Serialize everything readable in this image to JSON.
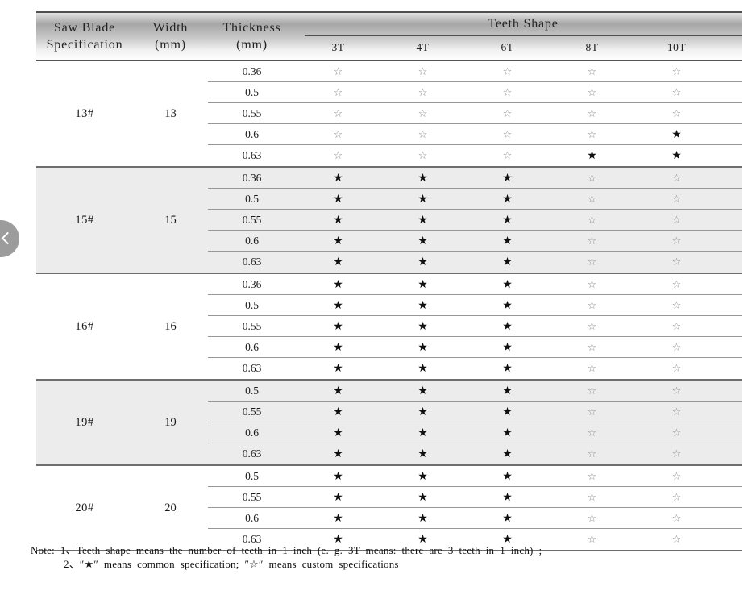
{
  "carousel": {
    "prev_icon": "chevron-left"
  },
  "table": {
    "header": {
      "spec_line1": "Saw Blade",
      "spec_line2": "Specification",
      "width_line1": "Width",
      "width_line2": "(mm)",
      "thickness_line1": "Thickness",
      "thickness_line2": "(mm)",
      "teeth_shape": "Teeth Shape",
      "teeth_cols": [
        "3T",
        "4T",
        "6T",
        "8T",
        "10T"
      ]
    },
    "legend": {
      "common": "★",
      "custom": "☆"
    },
    "groups": [
      {
        "spec": "13#",
        "width": "13",
        "shaded": false,
        "rows": [
          {
            "thickness": "0.36",
            "marks": [
              "custom",
              "custom",
              "custom",
              "custom",
              "custom"
            ]
          },
          {
            "thickness": "0.5",
            "marks": [
              "custom",
              "custom",
              "custom",
              "custom",
              "custom"
            ]
          },
          {
            "thickness": "0.55",
            "marks": [
              "custom",
              "custom",
              "custom",
              "custom",
              "custom"
            ]
          },
          {
            "thickness": "0.6",
            "marks": [
              "custom",
              "custom",
              "custom",
              "custom",
              "common"
            ]
          },
          {
            "thickness": "0.63",
            "marks": [
              "custom",
              "custom",
              "custom",
              "common",
              "common"
            ]
          }
        ]
      },
      {
        "spec": "15#",
        "width": "15",
        "shaded": true,
        "rows": [
          {
            "thickness": "0.36",
            "marks": [
              "common",
              "common",
              "common",
              "custom",
              "custom"
            ]
          },
          {
            "thickness": "0.5",
            "marks": [
              "common",
              "common",
              "common",
              "custom",
              "custom"
            ]
          },
          {
            "thickness": "0.55",
            "marks": [
              "common",
              "common",
              "common",
              "custom",
              "custom"
            ]
          },
          {
            "thickness": "0.6",
            "marks": [
              "common",
              "common",
              "common",
              "custom",
              "custom"
            ]
          },
          {
            "thickness": "0.63",
            "marks": [
              "common",
              "common",
              "common",
              "custom",
              "custom"
            ]
          }
        ]
      },
      {
        "spec": "16#",
        "width": "16",
        "shaded": false,
        "rows": [
          {
            "thickness": "0.36",
            "marks": [
              "common",
              "common",
              "common",
              "custom",
              "custom"
            ]
          },
          {
            "thickness": "0.5",
            "marks": [
              "common",
              "common",
              "common",
              "custom",
              "custom"
            ]
          },
          {
            "thickness": "0.55",
            "marks": [
              "common",
              "common",
              "common",
              "custom",
              "custom"
            ]
          },
          {
            "thickness": "0.6",
            "marks": [
              "common",
              "common",
              "common",
              "custom",
              "custom"
            ]
          },
          {
            "thickness": "0.63",
            "marks": [
              "common",
              "common",
              "common",
              "custom",
              "custom"
            ]
          }
        ]
      },
      {
        "spec": "19#",
        "width": "19",
        "shaded": true,
        "rows": [
          {
            "thickness": "0.5",
            "marks": [
              "common",
              "common",
              "common",
              "custom",
              "custom"
            ]
          },
          {
            "thickness": "0.55",
            "marks": [
              "common",
              "common",
              "common",
              "custom",
              "custom"
            ]
          },
          {
            "thickness": "0.6",
            "marks": [
              "common",
              "common",
              "common",
              "custom",
              "custom"
            ]
          },
          {
            "thickness": "0.63",
            "marks": [
              "common",
              "common",
              "common",
              "custom",
              "custom"
            ]
          }
        ]
      },
      {
        "spec": "20#",
        "width": "20",
        "shaded": false,
        "rows": [
          {
            "thickness": "0.5",
            "marks": [
              "common",
              "common",
              "common",
              "custom",
              "custom"
            ]
          },
          {
            "thickness": "0.55",
            "marks": [
              "common",
              "common",
              "common",
              "custom",
              "custom"
            ]
          },
          {
            "thickness": "0.6",
            "marks": [
              "common",
              "common",
              "common",
              "custom",
              "custom"
            ]
          },
          {
            "thickness": "0.63",
            "marks": [
              "common",
              "common",
              "common",
              "custom",
              "custom"
            ]
          }
        ]
      }
    ]
  },
  "notes": {
    "line1": "Note: 1、Teeth shape means the number of teeth in 1 inch (e. g. 3T  means: there are 3 teeth in 1 inch) ;",
    "line2": "2、″★″ means common specification; ″☆″ means custom specifications"
  },
  "colors": {
    "shaded_row": "#ececec",
    "filled_star": "#101010",
    "outline_star": "#8e8e8e",
    "circle_button": "#9c9c9c"
  }
}
